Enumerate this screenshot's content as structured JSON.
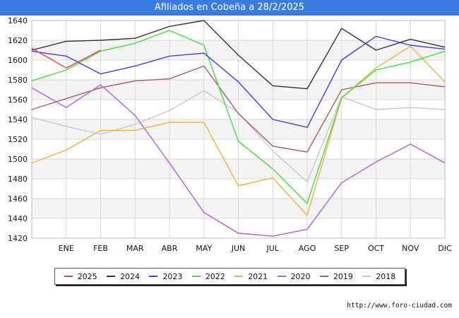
{
  "header": {
    "title": "Afiliados en Cobeña a 28/2/2025"
  },
  "footer": {
    "url": "http://www.foro-ciudad.com"
  },
  "chart_data": {
    "type": "line",
    "title": "Afiliados en Cobeña a 28/2/2025",
    "categories": [
      "",
      "ENE",
      "FEB",
      "MAR",
      "ABR",
      "MAY",
      "JUN",
      "JUL",
      "AGO",
      "SEP",
      "OCT",
      "NOV",
      "DIC"
    ],
    "ylim": [
      1420,
      1640
    ],
    "yticks": [
      1420,
      1440,
      1460,
      1480,
      1500,
      1520,
      1540,
      1560,
      1580,
      1600,
      1620,
      1640
    ],
    "grid": true,
    "legend_position": "bottom",
    "series": [
      {
        "name": "2025",
        "color": "#e04040",
        "values": [
          1612,
          1592,
          1610,
          null,
          null,
          null,
          null,
          null,
          null,
          null,
          null,
          null,
          null
        ]
      },
      {
        "name": "2024",
        "color": "#333333",
        "values": [
          1610,
          1619,
          1620,
          1622,
          1634,
          1640,
          1605,
          1574,
          1571,
          1632,
          1610,
          1621,
          1613
        ]
      },
      {
        "name": "2023",
        "color": "#4040e0",
        "values": [
          1609,
          1604,
          1586,
          1594,
          1604,
          1607,
          1578,
          1540,
          1532,
          1600,
          1624,
          1615,
          1611
        ]
      },
      {
        "name": "2022",
        "color": "#40e040",
        "values": [
          1579,
          1590,
          1609,
          1617,
          1630,
          1615,
          1518,
          1490,
          1455,
          1562,
          1590,
          1598,
          1609
        ]
      },
      {
        "name": "2021",
        "color": "#f5b041",
        "values": [
          1496,
          1509,
          1529,
          1529,
          1537,
          1537,
          1473,
          1481,
          1443,
          1562,
          1592,
          1614,
          1578
        ]
      },
      {
        "name": "2020",
        "color": "#b060e0",
        "values": [
          1572,
          1552,
          1575,
          1544,
          1496,
          1446,
          1425,
          1422,
          1429,
          1476,
          1497,
          1515,
          1496
        ]
      },
      {
        "name": "2019",
        "color": "#b05a60",
        "values": [
          1550,
          1561,
          1572,
          1579,
          1581,
          1594,
          1546,
          1513,
          1507,
          1570,
          1577,
          1577,
          1573
        ]
      },
      {
        "name": "2018",
        "color": "#c8c8c8",
        "values": [
          1542,
          1533,
          1525,
          1535,
          1549,
          1569,
          1547,
          1508,
          1477,
          1563,
          1550,
          1552,
          1550
        ]
      }
    ]
  }
}
